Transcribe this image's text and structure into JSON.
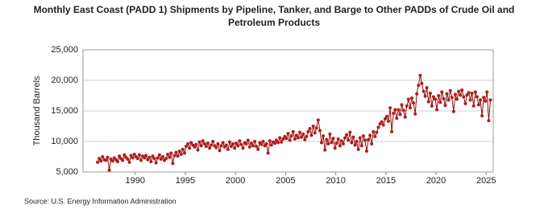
{
  "chart_data": {
    "type": "line",
    "title": "Monthly East Coast (PADD 1) Shipments by Pipeline, Tanker, and Barge to Other PADDs of Crude Oil and Petroleum Products",
    "ylabel": "Thousand Barrels",
    "source": "Source: U.S. Energy Information Administration",
    "xlim": [
      1984.8,
      2025.7
    ],
    "xticks": [
      1990,
      1995,
      2000,
      2005,
      2010,
      2015,
      2020,
      2025
    ],
    "ylim": [
      5000,
      25000
    ],
    "yticks": [
      {
        "value": 5000,
        "label": "5,000"
      },
      {
        "value": 10000,
        "label": "10,000"
      },
      {
        "value": 15000,
        "label": "15,000"
      },
      {
        "value": 20000,
        "label": "20,000"
      },
      {
        "value": 25000,
        "label": "25,000"
      }
    ],
    "grid": true,
    "x": [
      1986.25,
      1986.42,
      1986.58,
      1986.75,
      1986.92,
      1987.08,
      1987.25,
      1987.42,
      1987.58,
      1987.75,
      1987.92,
      1988.08,
      1988.25,
      1988.42,
      1988.58,
      1988.75,
      1988.92,
      1989.08,
      1989.25,
      1989.42,
      1989.58,
      1989.75,
      1989.92,
      1990.08,
      1990.25,
      1990.42,
      1990.58,
      1990.75,
      1990.92,
      1991.08,
      1991.25,
      1991.42,
      1991.58,
      1991.75,
      1991.92,
      1992.08,
      1992.25,
      1992.42,
      1992.58,
      1992.75,
      1992.92,
      1993.08,
      1993.25,
      1993.42,
      1993.58,
      1993.75,
      1993.92,
      1994.08,
      1994.25,
      1994.42,
      1994.58,
      1994.75,
      1994.92,
      1995.08,
      1995.25,
      1995.42,
      1995.58,
      1995.75,
      1995.92,
      1996.08,
      1996.25,
      1996.42,
      1996.58,
      1996.75,
      1996.92,
      1997.08,
      1997.25,
      1997.42,
      1997.58,
      1997.75,
      1997.92,
      1998.08,
      1998.25,
      1998.42,
      1998.58,
      1998.75,
      1998.92,
      1999.08,
      1999.25,
      1999.42,
      1999.58,
      1999.75,
      1999.92,
      2000.08,
      2000.25,
      2000.42,
      2000.58,
      2000.75,
      2000.92,
      2001.08,
      2001.25,
      2001.42,
      2001.58,
      2001.75,
      2001.92,
      2002.08,
      2002.25,
      2002.42,
      2002.58,
      2002.75,
      2002.92,
      2003.08,
      2003.25,
      2003.42,
      2003.58,
      2003.75,
      2003.92,
      2004.08,
      2004.25,
      2004.42,
      2004.58,
      2004.75,
      2004.92,
      2005.08,
      2005.25,
      2005.42,
      2005.58,
      2005.75,
      2005.92,
      2006.08,
      2006.25,
      2006.42,
      2006.58,
      2006.75,
      2006.92,
      2007.08,
      2007.25,
      2007.42,
      2007.58,
      2007.75,
      2007.92,
      2008.08,
      2008.25,
      2008.42,
      2008.58,
      2008.75,
      2008.92,
      2009.08,
      2009.25,
      2009.42,
      2009.58,
      2009.75,
      2009.92,
      2010.08,
      2010.25,
      2010.42,
      2010.58,
      2010.75,
      2010.92,
      2011.08,
      2011.25,
      2011.42,
      2011.58,
      2011.75,
      2011.92,
      2012.08,
      2012.25,
      2012.42,
      2012.58,
      2012.75,
      2012.92,
      2013.08,
      2013.25,
      2013.42,
      2013.58,
      2013.75,
      2013.92,
      2014.08,
      2014.25,
      2014.42,
      2014.58,
      2014.75,
      2014.92,
      2015.08,
      2015.25,
      2015.42,
      2015.58,
      2015.75,
      2015.92,
      2016.08,
      2016.25,
      2016.42,
      2016.58,
      2016.75,
      2016.92,
      2017.08,
      2017.25,
      2017.42,
      2017.58,
      2017.75,
      2017.92,
      2018.08,
      2018.25,
      2018.42,
      2018.58,
      2018.75,
      2018.92,
      2019.08,
      2019.25,
      2019.42,
      2019.58,
      2019.75,
      2019.92,
      2020.08,
      2020.25,
      2020.42,
      2020.58,
      2020.75,
      2020.92,
      2021.08,
      2021.25,
      2021.42,
      2021.58,
      2021.75,
      2021.92,
      2022.08,
      2022.25,
      2022.42,
      2022.58,
      2022.75,
      2022.92,
      2023.08,
      2023.25,
      2023.42,
      2023.58,
      2023.75,
      2023.92,
      2024.08,
      2024.25,
      2024.42,
      2024.58,
      2024.75,
      2024.92,
      2025.08,
      2025.25,
      2025.42
    ],
    "series": [
      {
        "color": "#b01c1c",
        "line_color": "#8b0f0f",
        "values": [
          6600,
          7200,
          6800,
          7500,
          7000,
          6900,
          7400,
          5300,
          7100,
          6800,
          7300,
          7000,
          6700,
          7600,
          7200,
          6900,
          7800,
          7400,
          7100,
          6600,
          7700,
          7300,
          7900,
          7500,
          7200,
          7800,
          6900,
          7600,
          7300,
          7700,
          7000,
          7400,
          6700,
          7600,
          7200,
          6500,
          7300,
          7800,
          7100,
          7500,
          6900,
          7200,
          7900,
          7400,
          8100,
          6400,
          7700,
          8200,
          7600,
          8400,
          7900,
          8700,
          8100,
          9200,
          9600,
          8900,
          9800,
          9400,
          9100,
          9500,
          8600,
          9900,
          9300,
          10100,
          9600,
          9200,
          9700,
          8900,
          9400,
          10000,
          9300,
          9000,
          9600,
          8500,
          9300,
          9800,
          9100,
          9400,
          8700,
          9900,
          9200,
          9600,
          8900,
          9700,
          9300,
          10100,
          9500,
          8900,
          9800,
          9600,
          10200,
          9100,
          9700,
          9300,
          10000,
          9200,
          8700,
          9800,
          9500,
          10000,
          9300,
          9600,
          8100,
          10100,
          9400,
          9900,
          9700,
          10200,
          9800,
          10600,
          9900,
          10400,
          10800,
          10500,
          11300,
          10200,
          10900,
          11600,
          10400,
          11000,
          10600,
          11500,
          10700,
          11200,
          10300,
          10800,
          11600,
          12100,
          11000,
          12500,
          11400,
          12200,
          13500,
          11800,
          9800,
          10900,
          8600,
          10300,
          9600,
          11200,
          9800,
          10500,
          8900,
          9700,
          10400,
          9300,
          10100,
          9600,
          10600,
          11100,
          10200,
          11500,
          9800,
          10700,
          9400,
          10000,
          8700,
          10600,
          9300,
          10900,
          10200,
          8400,
          10300,
          11000,
          9600,
          11600,
          10800,
          11500,
          12300,
          12900,
          13200,
          12700,
          13700,
          14100,
          13300,
          15500,
          11600,
          14600,
          15200,
          13800,
          15200,
          14400,
          16000,
          15100,
          14000,
          15800,
          16900,
          15500,
          17100,
          16300,
          14500,
          17800,
          19200,
          20800,
          19500,
          18200,
          17400,
          18800,
          16500,
          17900,
          15800,
          17300,
          16900,
          15200,
          17500,
          16400,
          18100,
          17000,
          15900,
          17800,
          16800,
          18300,
          17200,
          14900,
          17700,
          16900,
          18200,
          17600,
          18400,
          17300,
          16200,
          17600,
          18000,
          16800,
          17900,
          15800,
          18100,
          17300,
          16000,
          16800,
          14200,
          17200,
          16600,
          18100,
          13400,
          16800
        ]
      }
    ]
  }
}
